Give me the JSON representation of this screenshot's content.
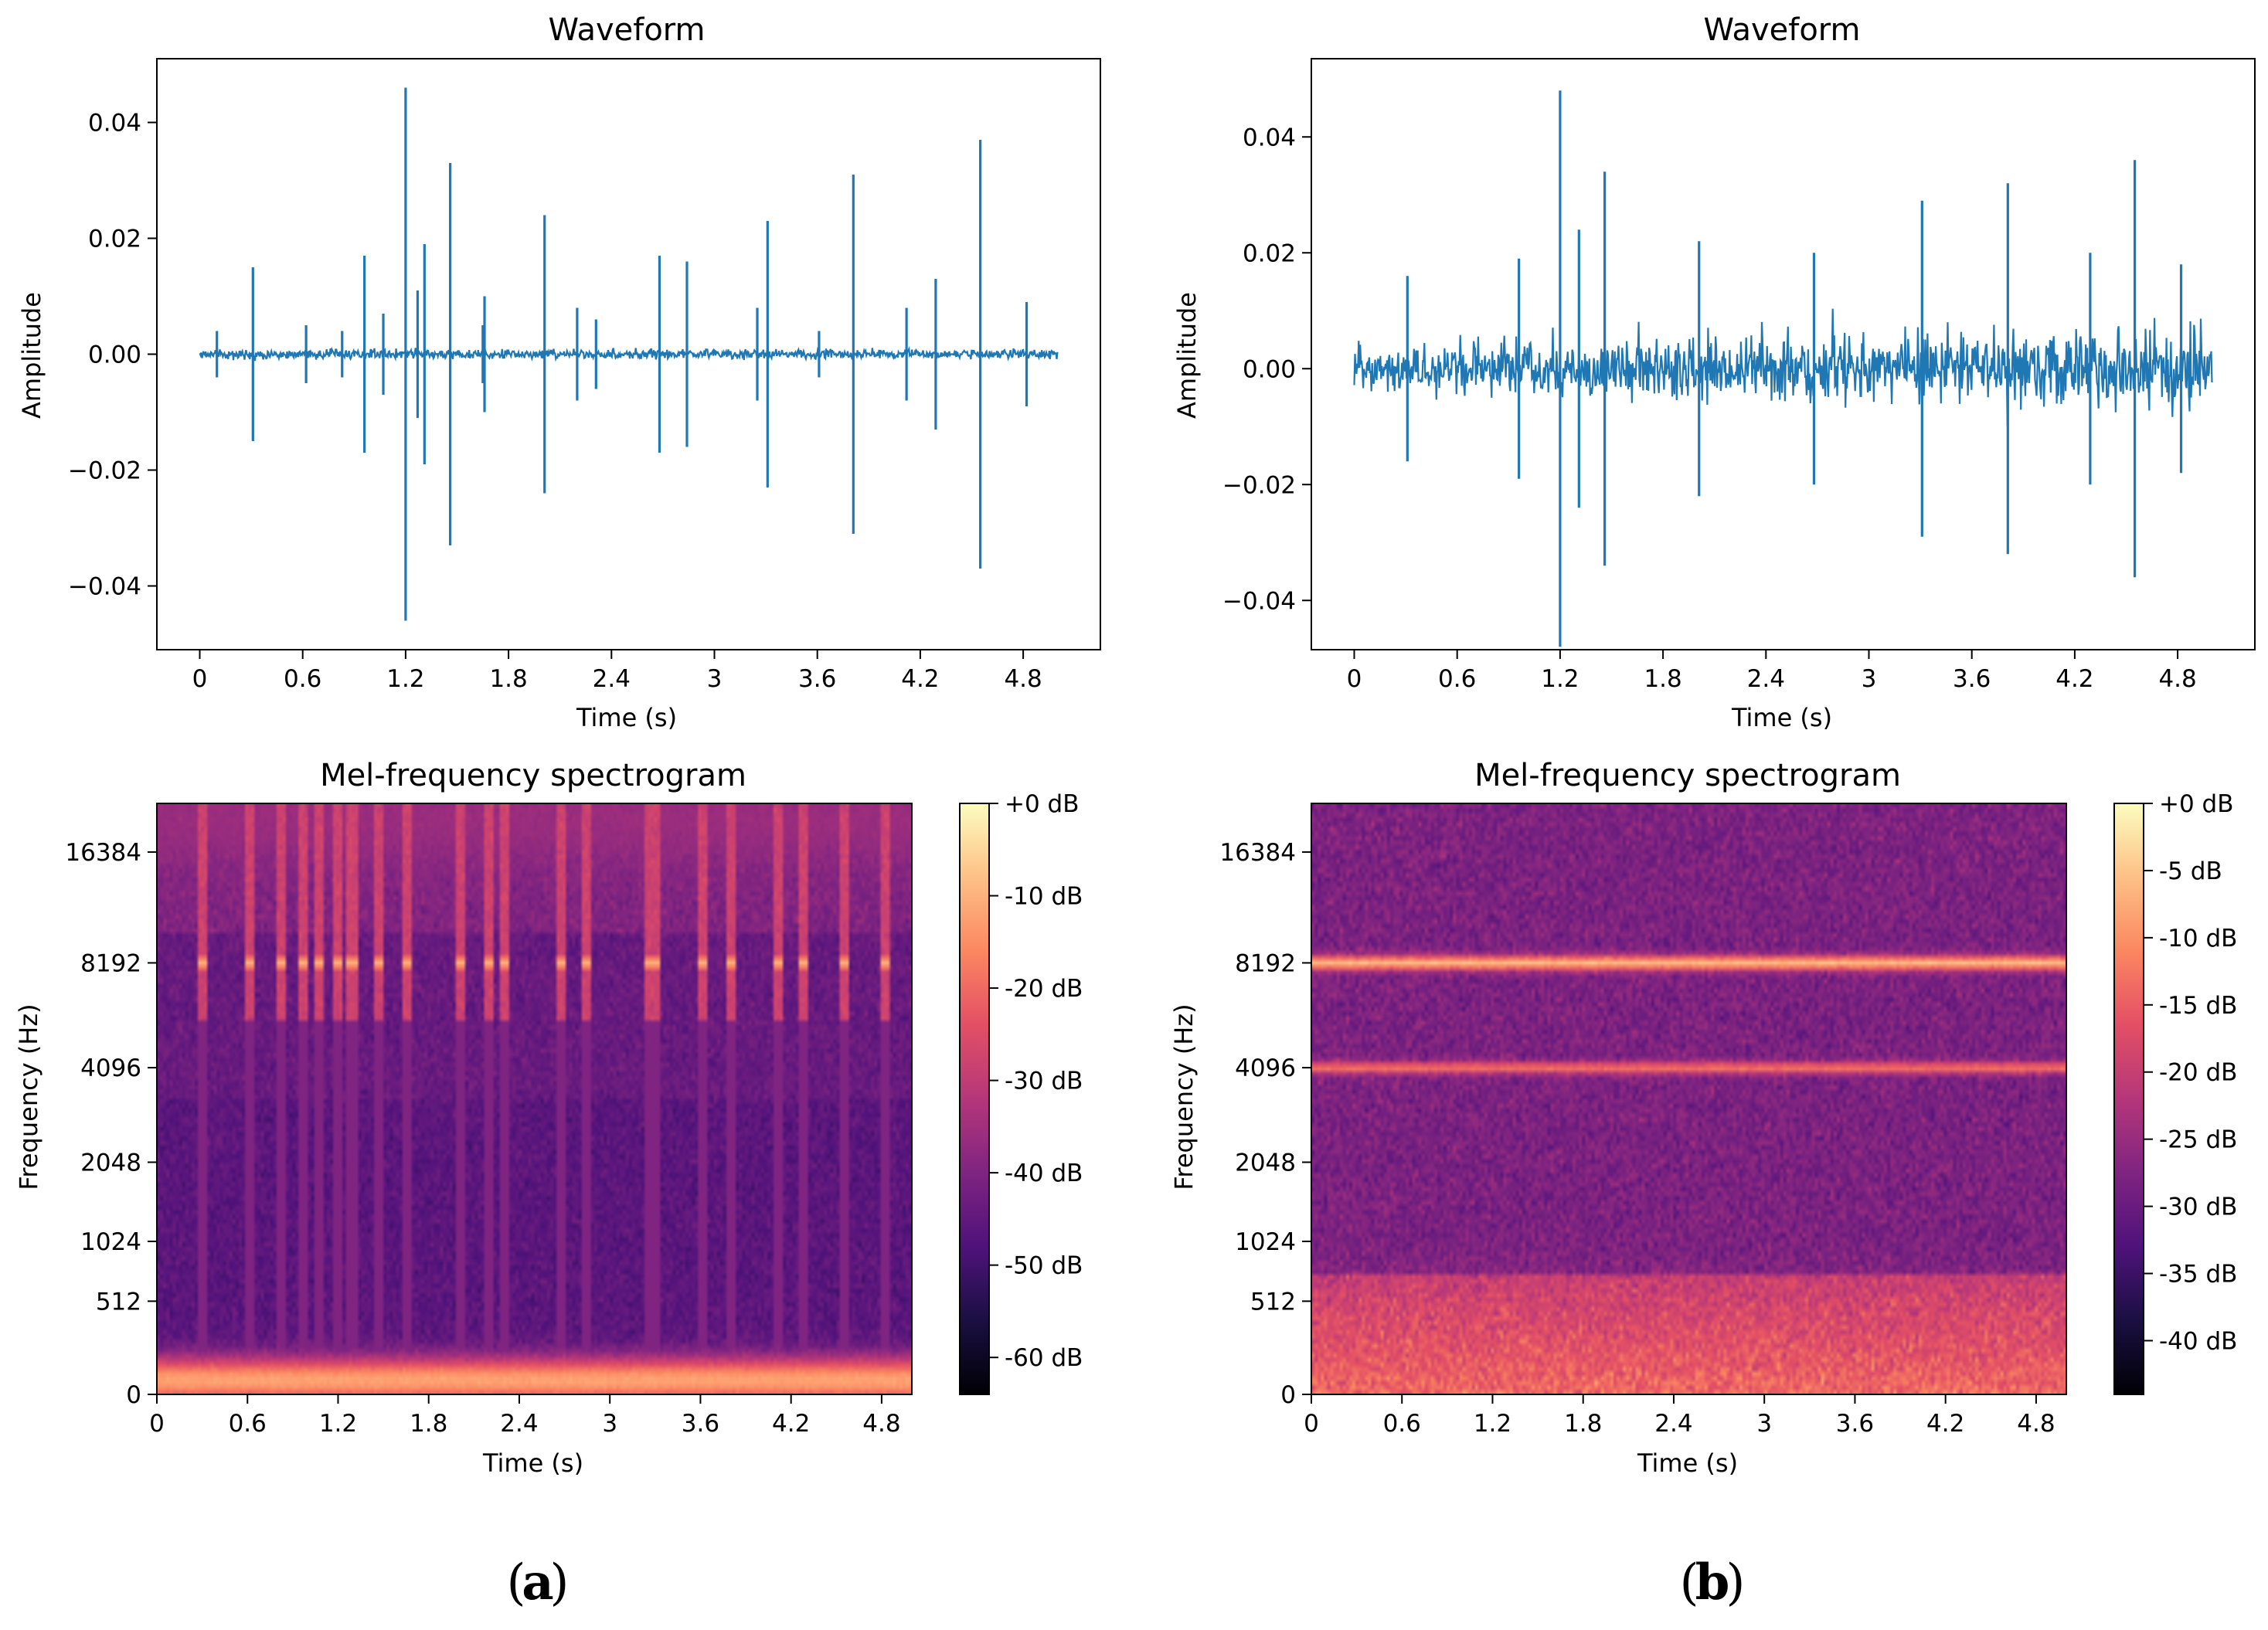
{
  "panels": [
    {
      "label": "a"
    },
    {
      "label": "b"
    }
  ],
  "chart_data": [
    {
      "type": "line",
      "panel": "a",
      "title": "Waveform",
      "xlabel": "Time (s)",
      "ylabel": "Amplitude",
      "xlim": [
        -0.25,
        5.25
      ],
      "ylim": [
        -0.051,
        0.051
      ],
      "xticks": [
        0,
        0.6,
        1.2,
        1.8,
        2.4,
        3,
        3.6,
        4.2,
        4.8
      ],
      "xtick_labels": [
        "0",
        "0.6",
        "1.2",
        "1.8",
        "2.4",
        "3",
        "3.6",
        "4.2",
        "4.8"
      ],
      "yticks": [
        0.04,
        0.02,
        0.0,
        -0.02,
        -0.04
      ],
      "ytick_labels": [
        "0.04",
        "0.02",
        "0.00",
        "−0.02",
        "−0.04"
      ],
      "series_color": "#1f77b4",
      "duration_s": 5.0,
      "noise_envelope_start": 0.0015,
      "noise_envelope_end": 0.0015,
      "spikes": [
        {
          "t": 0.1,
          "amp": 0.004
        },
        {
          "t": 0.31,
          "amp": 0.015
        },
        {
          "t": 0.62,
          "amp": 0.005
        },
        {
          "t": 0.83,
          "amp": 0.004
        },
        {
          "t": 0.96,
          "amp": 0.017
        },
        {
          "t": 1.07,
          "amp": 0.007
        },
        {
          "t": 1.2,
          "amp": 0.046
        },
        {
          "t": 1.27,
          "amp": 0.011
        },
        {
          "t": 1.31,
          "amp": 0.019
        },
        {
          "t": 1.46,
          "amp": 0.033
        },
        {
          "t": 1.65,
          "amp": 0.005
        },
        {
          "t": 1.66,
          "amp": 0.01
        },
        {
          "t": 2.01,
          "amp": 0.024
        },
        {
          "t": 2.2,
          "amp": 0.008
        },
        {
          "t": 2.31,
          "amp": 0.006
        },
        {
          "t": 2.68,
          "amp": 0.017
        },
        {
          "t": 2.84,
          "amp": 0.016
        },
        {
          "t": 3.25,
          "amp": 0.008
        },
        {
          "t": 3.31,
          "amp": 0.023
        },
        {
          "t": 3.61,
          "amp": 0.004
        },
        {
          "t": 3.81,
          "amp": 0.031
        },
        {
          "t": 4.12,
          "amp": 0.008
        },
        {
          "t": 4.29,
          "amp": 0.013
        },
        {
          "t": 4.55,
          "amp": 0.037
        },
        {
          "t": 4.82,
          "amp": 0.009
        }
      ]
    },
    {
      "type": "line",
      "panel": "b",
      "title": "Waveform",
      "xlabel": "Time (s)",
      "ylabel": "Amplitude",
      "xlim": [
        -0.25,
        5.25
      ],
      "ylim": [
        -0.0485,
        0.0535
      ],
      "xticks": [
        0,
        0.6,
        1.2,
        1.8,
        2.4,
        3,
        3.6,
        4.2,
        4.8
      ],
      "xtick_labels": [
        "0",
        "0.6",
        "1.2",
        "1.8",
        "2.4",
        "3",
        "3.6",
        "4.2",
        "4.8"
      ],
      "yticks": [
        0.04,
        0.02,
        0.0,
        -0.02,
        -0.04
      ],
      "ytick_labels": [
        "0.04",
        "0.02",
        "0.00",
        "−0.02",
        "−0.04"
      ],
      "series_color": "#1f77b4",
      "duration_s": 5.0,
      "noise_envelope_start": 0.007,
      "noise_envelope_end": 0.013,
      "spikes": [
        {
          "t": 0.31,
          "amp": 0.016
        },
        {
          "t": 0.96,
          "amp": 0.019
        },
        {
          "t": 1.2,
          "amp": 0.048
        },
        {
          "t": 1.31,
          "amp": 0.024
        },
        {
          "t": 1.46,
          "amp": 0.034
        },
        {
          "t": 2.01,
          "amp": 0.022
        },
        {
          "t": 2.68,
          "amp": 0.02
        },
        {
          "t": 3.31,
          "amp": 0.029
        },
        {
          "t": 3.81,
          "amp": 0.032
        },
        {
          "t": 4.29,
          "amp": 0.02
        },
        {
          "t": 4.55,
          "amp": 0.036
        },
        {
          "t": 4.82,
          "amp": 0.018
        }
      ]
    },
    {
      "type": "heatmap",
      "panel": "a",
      "title": "Mel-frequency spectrogram",
      "xlabel": "Time (s)",
      "ylabel": "Frequency (Hz)",
      "xlim": [
        0,
        5.0
      ],
      "xticks": [
        0,
        0.6,
        1.2,
        1.8,
        2.4,
        3,
        3.6,
        4.2,
        4.8
      ],
      "xtick_labels": [
        "0",
        "0.6",
        "1.2",
        "1.8",
        "2.4",
        "3",
        "3.6",
        "4.2",
        "4.8"
      ],
      "yscale": "mel",
      "ylim_hz": [
        0,
        22050
      ],
      "yticks_hz": [
        0,
        512,
        1024,
        2048,
        4096,
        8192,
        16384
      ],
      "ytick_labels": [
        "0",
        "512",
        "1024",
        "2048",
        "4096",
        "8192",
        "16384"
      ],
      "colormap": "magma",
      "db_range": [
        -64,
        0
      ],
      "colorbar_ticks": [
        0,
        -10,
        -20,
        -30,
        -40,
        -50,
        -60
      ],
      "colorbar_labels": [
        "+0 dB",
        "-10 dB",
        "-20 dB",
        "-30 dB",
        "-40 dB",
        "-50 dB",
        "-60 dB"
      ],
      "background_db": -44,
      "features": [
        {
          "kind": "band",
          "freq_hz": 60,
          "db": -12,
          "width": 0.04
        },
        {
          "kind": "band",
          "freq_hz": 20000,
          "db": -36,
          "width": 0.08
        },
        {
          "kind": "clicks",
          "freq_hz": 8192,
          "db": -10,
          "times": [
            0.31,
            0.62,
            0.83,
            0.96,
            1.07,
            1.2,
            1.27,
            1.31,
            1.46,
            1.65,
            2.01,
            2.2,
            2.31,
            2.68,
            2.84,
            3.25,
            3.31,
            3.61,
            3.81,
            4.12,
            4.29,
            4.55,
            4.82
          ]
        }
      ]
    },
    {
      "type": "heatmap",
      "panel": "b",
      "title": "Mel-frequency spectrogram",
      "xlabel": "Time (s)",
      "ylabel": "Frequency (Hz)",
      "xlim": [
        0,
        5.0
      ],
      "xticks": [
        0,
        0.6,
        1.2,
        1.8,
        2.4,
        3,
        3.6,
        4.2,
        4.8
      ],
      "xtick_labels": [
        "0",
        "0.6",
        "1.2",
        "1.8",
        "2.4",
        "3",
        "3.6",
        "4.2",
        "4.8"
      ],
      "yscale": "mel",
      "ylim_hz": [
        0,
        22050
      ],
      "yticks_hz": [
        0,
        512,
        1024,
        2048,
        4096,
        8192,
        16384
      ],
      "ytick_labels": [
        "0",
        "512",
        "1024",
        "2048",
        "4096",
        "8192",
        "16384"
      ],
      "colormap": "magma",
      "db_range": [
        -44,
        0
      ],
      "colorbar_ticks": [
        0,
        -5,
        -10,
        -15,
        -20,
        -25,
        -30,
        -35,
        -40
      ],
      "colorbar_labels": [
        "+0 dB",
        "-5 dB",
        "-10 dB",
        "-15 dB",
        "-20 dB",
        "-25 dB",
        "-30 dB",
        "-35 dB",
        "-40 dB"
      ],
      "background_db": -28,
      "features": [
        {
          "kind": "band",
          "freq_hz": 8192,
          "db": -6,
          "width": 0.012
        },
        {
          "kind": "band",
          "freq_hz": 4096,
          "db": -13,
          "width": 0.01
        },
        {
          "kind": "lowband",
          "db": -14
        },
        {
          "kind": "band",
          "freq_hz": 20000,
          "db": -30,
          "width": 0.08
        }
      ]
    }
  ]
}
